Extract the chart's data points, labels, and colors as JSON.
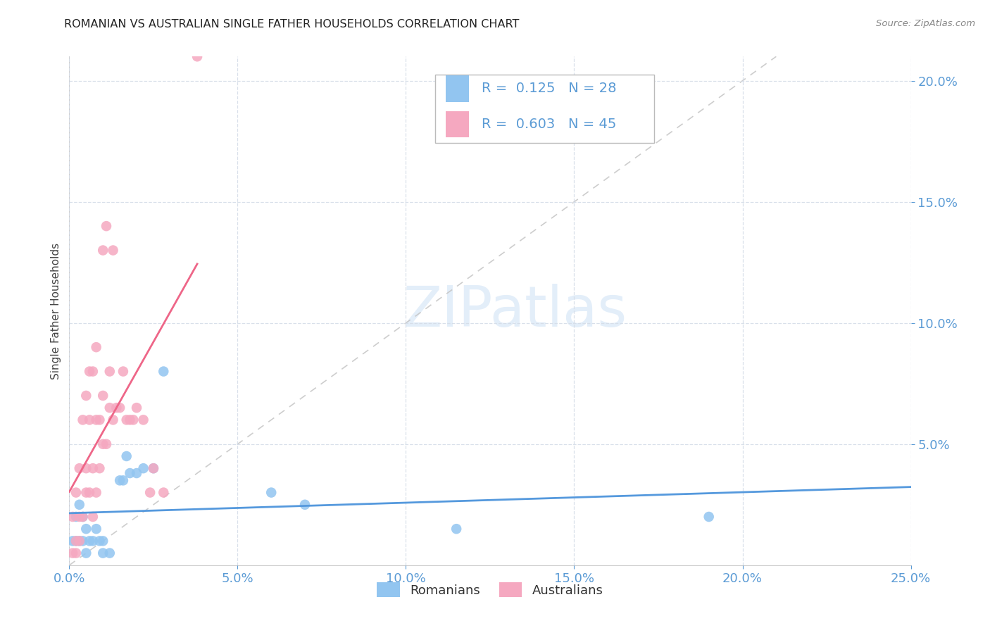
{
  "title": "ROMANIAN VS AUSTRALIAN SINGLE FATHER HOUSEHOLDS CORRELATION CHART",
  "source": "Source: ZipAtlas.com",
  "ylabel": "Single Father Households",
  "romanian_color": "#92c5f0",
  "australian_color": "#f5a8c0",
  "trendline_romanian_color": "#5599dd",
  "trendline_australian_color": "#ee6688",
  "diagonal_color": "#c8c8c8",
  "grid_color": "#d5dde8",
  "tick_color": "#5b9bd5",
  "legend_R_ro": "R =  0.125",
  "legend_N_ro": "N = 28",
  "legend_R_au": "R =  0.603",
  "legend_N_au": "N = 45",
  "xlim": [
    0.0,
    0.25
  ],
  "ylim": [
    0.0,
    0.21
  ],
  "xticks": [
    0.0,
    0.05,
    0.1,
    0.15,
    0.2,
    0.25
  ],
  "yticks": [
    0.05,
    0.1,
    0.15,
    0.2
  ],
  "ro_x": [
    0.001,
    0.002,
    0.002,
    0.003,
    0.003,
    0.004,
    0.004,
    0.005,
    0.005,
    0.006,
    0.007,
    0.008,
    0.009,
    0.01,
    0.01,
    0.012,
    0.015,
    0.016,
    0.017,
    0.018,
    0.02,
    0.022,
    0.025,
    0.028,
    0.06,
    0.07,
    0.115,
    0.19
  ],
  "ro_y": [
    0.01,
    0.02,
    0.01,
    0.01,
    0.025,
    0.01,
    0.02,
    0.005,
    0.015,
    0.01,
    0.01,
    0.015,
    0.01,
    0.005,
    0.01,
    0.005,
    0.035,
    0.035,
    0.045,
    0.038,
    0.038,
    0.04,
    0.04,
    0.08,
    0.03,
    0.025,
    0.015,
    0.02
  ],
  "au_x": [
    0.001,
    0.001,
    0.002,
    0.002,
    0.002,
    0.003,
    0.003,
    0.003,
    0.004,
    0.004,
    0.005,
    0.005,
    0.005,
    0.006,
    0.006,
    0.006,
    0.007,
    0.007,
    0.007,
    0.008,
    0.008,
    0.008,
    0.009,
    0.009,
    0.01,
    0.01,
    0.01,
    0.011,
    0.011,
    0.012,
    0.012,
    0.013,
    0.013,
    0.014,
    0.015,
    0.016,
    0.017,
    0.018,
    0.019,
    0.02,
    0.022,
    0.024,
    0.025,
    0.028,
    0.038
  ],
  "au_y": [
    0.005,
    0.02,
    0.005,
    0.01,
    0.03,
    0.01,
    0.02,
    0.04,
    0.02,
    0.06,
    0.03,
    0.04,
    0.07,
    0.03,
    0.06,
    0.08,
    0.02,
    0.04,
    0.08,
    0.03,
    0.06,
    0.09,
    0.04,
    0.06,
    0.05,
    0.07,
    0.13,
    0.05,
    0.14,
    0.065,
    0.08,
    0.06,
    0.13,
    0.065,
    0.065,
    0.08,
    0.06,
    0.06,
    0.06,
    0.065,
    0.06,
    0.03,
    0.04,
    0.03,
    0.21
  ]
}
